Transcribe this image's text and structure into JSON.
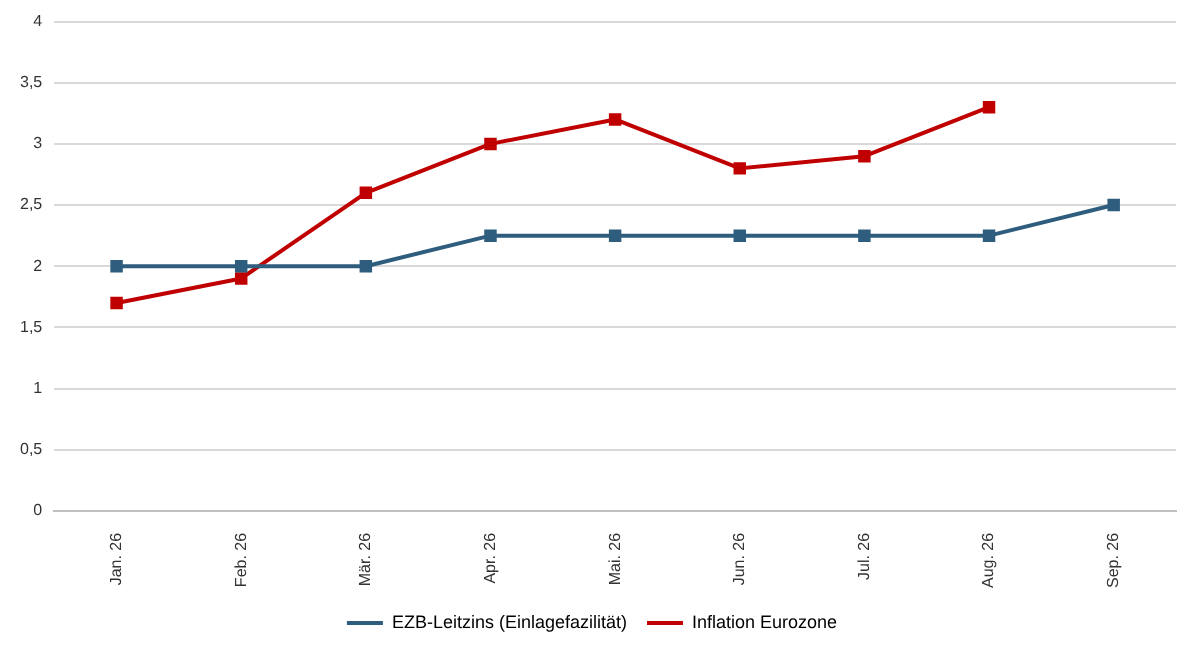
{
  "chart_data": {
    "type": "line",
    "categories": [
      "Jan. 26",
      "Feb. 26",
      "Mär. 26",
      "Apr. 26",
      "Mai. 26",
      "Jun. 26",
      "Jul. 26",
      "Aug. 26",
      "Sep. 26"
    ],
    "series": [
      {
        "name": "EZB-Leitzins (Einlagefazilität)",
        "color": "#2f5d7e",
        "values": [
          2,
          2,
          2,
          2.25,
          2.25,
          2.25,
          2.25,
          2.25,
          2.5
        ]
      },
      {
        "name": "Inflation Eurozone",
        "color": "#c00000",
        "values": [
          1.7,
          1.9,
          2.6,
          3.0,
          3.2,
          2.8,
          2.9,
          3.3,
          null
        ]
      }
    ],
    "ylim": [
      0,
      4
    ],
    "yticks": [
      0,
      {
        "value": 0.5,
        "label": "0,5"
      },
      1,
      {
        "value": 1.5,
        "label": "1,5"
      },
      2,
      {
        "value": 2.5,
        "label": "2,5"
      },
      3,
      {
        "value": 3.5,
        "label": "3,5"
      },
      4
    ],
    "grid": "y",
    "legend": "bottom",
    "marker": "square",
    "line_style": "solid"
  }
}
